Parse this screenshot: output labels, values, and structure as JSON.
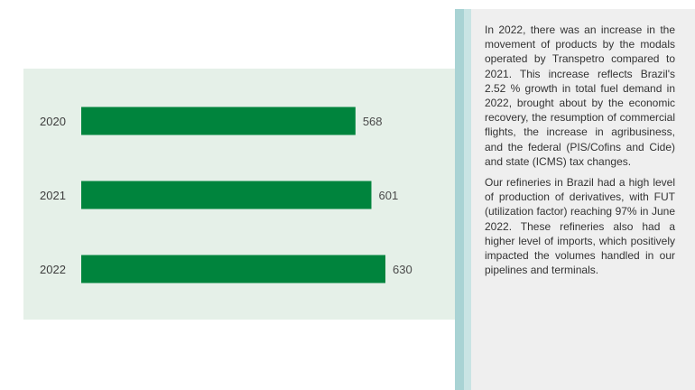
{
  "chart_data": {
    "type": "bar",
    "orientation": "horizontal",
    "categories": [
      "2020",
      "2021",
      "2022"
    ],
    "values": [
      568,
      601,
      630
    ],
    "value_labels": [
      "568",
      "601",
      "630"
    ],
    "title": "",
    "xlabel": "",
    "ylabel": "",
    "xlim": [
      0,
      630
    ],
    "grid": false,
    "bar_color": "#00843d",
    "panel_color": "#e5f0e8"
  },
  "sidebar": {
    "paragraphs": [
      "In 2022, there was an increase in the movement of products by the modals operated by Transpetro compared to 2021. This increase reflects Brazil's 2.52 % growth in total fuel demand in 2022, brought about by the economic recovery, the resumption of commercial flights, the increase in agribusiness, and the federal (PIS/Cofins and Cide) and state (ICMS) tax changes.",
      "Our refineries in Brazil had a high level of production of derivatives, with FUT (utilization factor) reaching 97% in June 2022. These refineries also had a higher level of imports, which positively impacted the volumes handled in our pipelines and terminals."
    ]
  }
}
